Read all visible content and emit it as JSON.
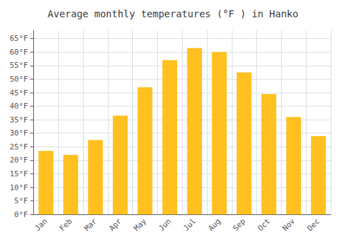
{
  "chart_data": {
    "type": "bar",
    "title": "Average monthly temperatures (°F ) in Hanko",
    "categories": [
      "Jan",
      "Feb",
      "Mar",
      "Apr",
      "May",
      "Jun",
      "Jul",
      "Aug",
      "Sep",
      "Oct",
      "Nov",
      "Dec"
    ],
    "values": [
      23.5,
      22.0,
      27.5,
      36.5,
      47.0,
      57.0,
      61.5,
      60.0,
      52.5,
      44.5,
      36.0,
      29.0
    ],
    "color": "#FFC020",
    "ylim": [
      0,
      68
    ],
    "yticks": [
      {
        "value": 0,
        "label": "0°F"
      },
      {
        "value": 5,
        "label": "5°F"
      },
      {
        "value": 10,
        "label": "10°F"
      },
      {
        "value": 15,
        "label": "15°F"
      },
      {
        "value": 20,
        "label": "20°F"
      },
      {
        "value": 25,
        "label": "25°F"
      },
      {
        "value": 30,
        "label": "30°F"
      },
      {
        "value": 35,
        "label": "35°F"
      },
      {
        "value": 40,
        "label": "40°F"
      },
      {
        "value": 45,
        "label": "45°F"
      },
      {
        "value": 50,
        "label": "50°F"
      },
      {
        "value": 55,
        "label": "55°F"
      },
      {
        "value": 60,
        "label": "60°F"
      },
      {
        "value": 65,
        "label": "65°F"
      }
    ],
    "grid": true
  }
}
